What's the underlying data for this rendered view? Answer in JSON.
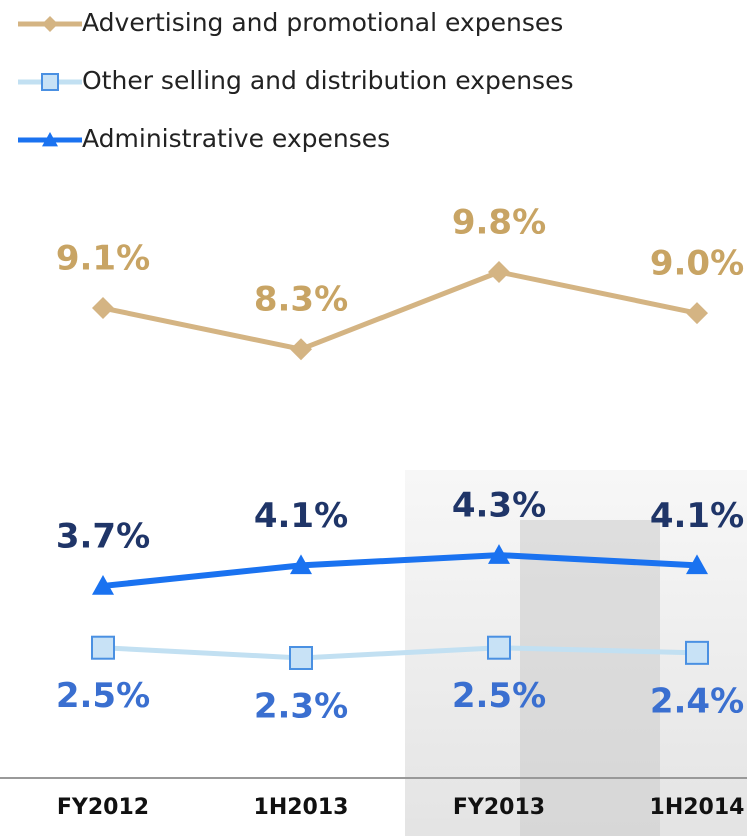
{
  "chart_data": {
    "type": "line",
    "categories": [
      "FY2012",
      "1H2013",
      "FY2013",
      "1H2014"
    ],
    "series": [
      {
        "name": "Advertising and promotional expenses",
        "color": "#d4b483",
        "label_color": "#c8a464",
        "marker": "diamond",
        "values": [
          9.1,
          8.3,
          9.8,
          9.0
        ],
        "value_labels": [
          "9.1%",
          "8.3%",
          "9.8%",
          "9.0%"
        ]
      },
      {
        "name": "Other selling and distribution expenses",
        "color": "#c2e0f2",
        "label_color": "#3a6fd0",
        "marker": "square",
        "values": [
          2.5,
          2.3,
          2.5,
          2.4
        ],
        "value_labels": [
          "2.5%",
          "2.3%",
          "2.5%",
          "2.4%"
        ]
      },
      {
        "name": "Administrative expenses",
        "color": "#1a72f0",
        "label_color": "#1f3568",
        "marker": "triangle",
        "values": [
          3.7,
          4.1,
          4.3,
          4.1
        ],
        "value_labels": [
          "3.7%",
          "4.1%",
          "4.3%",
          "4.1%"
        ]
      }
    ]
  }
}
